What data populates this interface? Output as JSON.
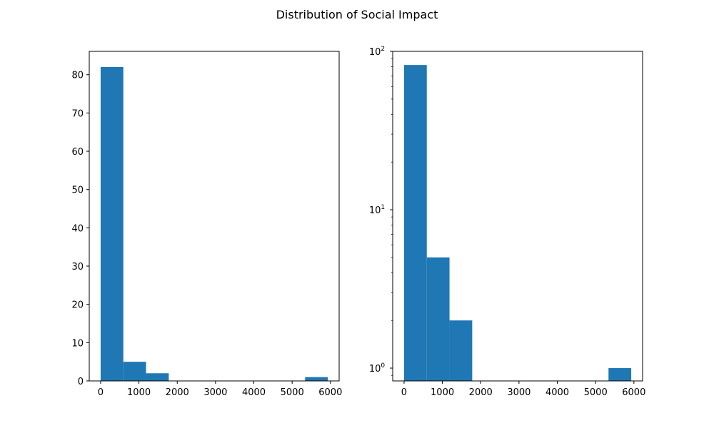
{
  "figure": {
    "title": "Distribution of Social Impact"
  },
  "chart_data": [
    {
      "type": "bar",
      "subtype": "histogram",
      "title": "",
      "xlabel": "",
      "ylabel": "",
      "bin_edges": [
        0,
        593,
        1186,
        1779,
        2372,
        2965,
        3558,
        4151,
        4744,
        5337,
        5930
      ],
      "counts": [
        82,
        5,
        2,
        0,
        0,
        0,
        0,
        0,
        0,
        1
      ],
      "xlim": [
        -297,
        6227
      ],
      "ylim": [
        0,
        86.1
      ],
      "yscale": "linear",
      "xticks": [
        0,
        1000,
        2000,
        3000,
        4000,
        5000,
        6000
      ],
      "xtick_labels": [
        "0",
        "1000",
        "2000",
        "3000",
        "4000",
        "5000",
        "6000"
      ],
      "yticks": [
        0,
        10,
        20,
        30,
        40,
        50,
        60,
        70,
        80
      ],
      "ytick_labels": [
        "0",
        "10",
        "20",
        "30",
        "40",
        "50",
        "60",
        "70",
        "80"
      ],
      "color": "#1f77b4",
      "grid": false,
      "legend": "none"
    },
    {
      "type": "bar",
      "subtype": "histogram",
      "title": "",
      "xlabel": "",
      "ylabel": "",
      "bin_edges": [
        0,
        593,
        1186,
        1779,
        2372,
        2965,
        3558,
        4151,
        4744,
        5337,
        5930
      ],
      "counts": [
        82,
        5,
        2,
        0,
        0,
        0,
        0,
        0,
        0,
        1
      ],
      "xlim": [
        -297,
        6227
      ],
      "ylim": [
        0.83,
        100
      ],
      "yscale": "log",
      "xticks": [
        0,
        1000,
        2000,
        3000,
        4000,
        5000,
        6000
      ],
      "xtick_labels": [
        "0",
        "1000",
        "2000",
        "3000",
        "4000",
        "5000",
        "6000"
      ],
      "yticks_major": [
        1,
        10,
        100
      ],
      "ytick_base": "10",
      "ytick_exponents": [
        "0",
        "1",
        "2"
      ],
      "color": "#1f77b4",
      "grid": false,
      "legend": "none"
    }
  ]
}
